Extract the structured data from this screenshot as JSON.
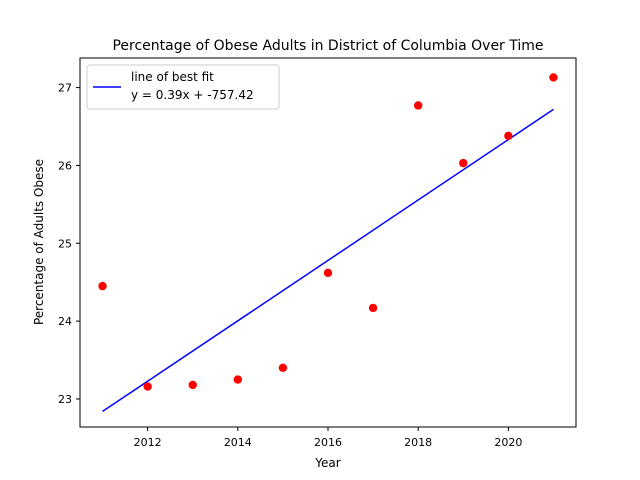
{
  "chart_data": {
    "type": "scatter",
    "title": "Percentage of Obese Adults in District of Columbia Over Time",
    "xlabel": "Year",
    "ylabel": "Percentage of Adults Obese",
    "xlim": [
      2010.5,
      2021.5
    ],
    "ylim": [
      22.64,
      27.38
    ],
    "x_ticks": [
      2012,
      2014,
      2016,
      2018,
      2020
    ],
    "y_ticks": [
      23,
      24,
      25,
      26,
      27
    ],
    "grid": false,
    "legend_position": "upper-left",
    "points": {
      "color": "#ff0000",
      "x": [
        2011,
        2012,
        2013,
        2014,
        2015,
        2016,
        2017,
        2018,
        2019,
        2020,
        2021
      ],
      "y": [
        24.45,
        23.16,
        23.18,
        23.25,
        23.4,
        24.62,
        24.17,
        26.77,
        26.03,
        26.38,
        27.13
      ]
    },
    "fit_line": {
      "name": "line of best fit",
      "equation": "y = 0.39x + -757.42",
      "color": "#0000ff",
      "x": [
        2011,
        2021
      ],
      "y": [
        22.84,
        26.72
      ]
    }
  }
}
